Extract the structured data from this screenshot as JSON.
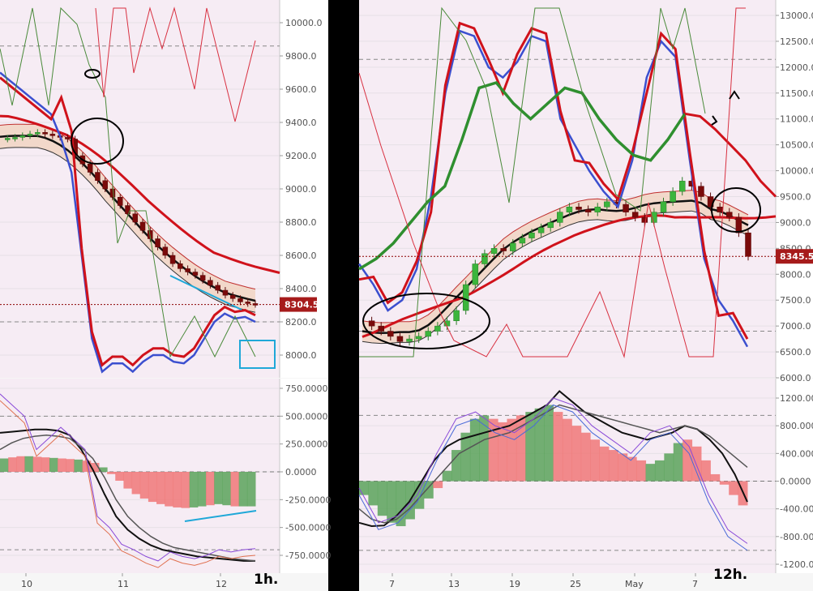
{
  "chart_data": [
    {
      "type": "candlestick",
      "panel": "left-price",
      "timeframe_label": "1h.",
      "y_ticks": [
        "10000.0",
        "9800.0",
        "9600.0",
        "9400.0",
        "9200.0",
        "9000.0",
        "8800.0",
        "8600.0",
        "8400.0",
        "8200.0",
        "8000.0"
      ],
      "ylim": [
        7860,
        10090
      ],
      "x_ticks": [
        "10",
        "11",
        "12"
      ],
      "last_price": "8304.5",
      "last_price_value": 8304.5,
      "dashed_levels": [
        9860,
        8200
      ],
      "close_path": [
        9300,
        9305,
        9310,
        9320,
        9330,
        9340,
        9330,
        9320,
        9310,
        9300,
        9200,
        9150,
        9100,
        9050,
        9000,
        8950,
        8900,
        8850,
        8800,
        8750,
        8700,
        8650,
        8600,
        8550,
        8520,
        8500,
        8480,
        8450,
        8420,
        8390,
        8360,
        8340,
        8320,
        8310,
        8305
      ],
      "colors": {
        "bull": "#3cb53c",
        "bear": "#7a0a0a",
        "upper_band": "#d0121b",
        "osc_blue": "#3b4fcf",
        "osc_green": "#3f8f2c"
      }
    },
    {
      "type": "histogram",
      "panel": "left-oscillator",
      "y_ticks": [
        "750.0000",
        "500.0000",
        "250.0000",
        "0.0000",
        "-250.0000",
        "-500.0000",
        "-750.0000"
      ],
      "ylim": [
        -850,
        900
      ],
      "histogram": [
        120,
        130,
        140,
        140,
        135,
        130,
        125,
        120,
        115,
        110,
        100,
        80,
        40,
        -20,
        -80,
        -150,
        -200,
        -240,
        -270,
        -290,
        -310,
        -320,
        -325,
        -320,
        -310,
        -300,
        -290,
        -300,
        -310,
        -310,
        -310
      ],
      "colors": {
        "positive": "#5aa35a",
        "negative": "#f07878"
      }
    },
    {
      "type": "candlestick",
      "panel": "right-price",
      "timeframe_label": "12h.",
      "y_ticks": [
        "13000.0",
        "12500.0",
        "12000.0",
        "11500.0",
        "11000.0",
        "10500.0",
        "10000.0",
        "9500.0",
        "9000.0",
        "8500.0",
        "8000.0",
        "7500.0",
        "7000.0",
        "6500.0",
        "6000.0"
      ],
      "ylim": [
        5980,
        13180
      ],
      "x_ticks": [
        "7",
        "13",
        "19",
        "25",
        "May",
        "7"
      ],
      "last_price": "8345.5",
      "last_price_value": 8345.5,
      "dashed_levels": [
        12150,
        6900
      ],
      "close_path": [
        7100,
        7000,
        6900,
        6800,
        6700,
        6750,
        6800,
        6900,
        7000,
        7100,
        7300,
        7800,
        8200,
        8400,
        8500,
        8450,
        8600,
        8700,
        8800,
        8900,
        9000,
        9200,
        9300,
        9250,
        9200,
        9300,
        9400,
        9350,
        9200,
        9100,
        9000,
        9200,
        9400,
        9600,
        9800,
        9700,
        9500,
        9300,
        9200,
        9100,
        8800,
        8345
      ],
      "colors": {
        "bull": "#3cb53c",
        "bear": "#7a0a0a",
        "upper_band": "#d0121b",
        "osc_blue": "#3b4fcf",
        "osc_green": "#2f8f2f"
      }
    },
    {
      "type": "histogram",
      "panel": "right-oscillator",
      "y_ticks": [
        "1200.0000",
        "800.0000",
        "400.0000",
        "0.0000",
        "-400.0000",
        "-800.0000",
        "-1200.0000"
      ],
      "ylim": [
        -1300,
        1400
      ],
      "histogram": [
        -200,
        -350,
        -500,
        -600,
        -650,
        -550,
        -400,
        -250,
        -100,
        150,
        450,
        700,
        900,
        950,
        900,
        850,
        900,
        950,
        1000,
        1050,
        1100,
        1000,
        900,
        800,
        700,
        600,
        500,
        450,
        400,
        350,
        300,
        250,
        300,
        400,
        550,
        600,
        500,
        300,
        100,
        -50,
        -200,
        -350
      ],
      "colors": {
        "positive": "#5aa35a",
        "negative": "#f07878"
      }
    }
  ]
}
